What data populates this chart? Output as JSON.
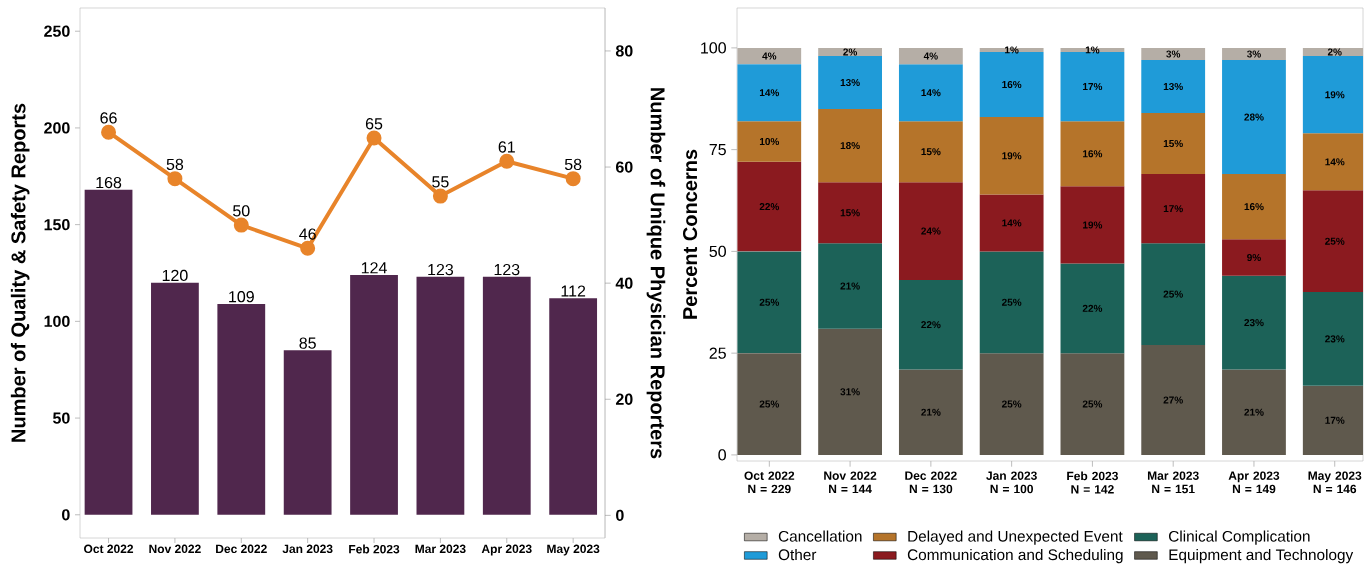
{
  "chart_data": [
    {
      "type": "bar",
      "categories": [
        "Oct 2022",
        "Nov 2022",
        "Dec 2022",
        "Jan 2023",
        "Feb 2023",
        "Mar 2023",
        "Apr 2023",
        "May 2023"
      ],
      "series": [
        {
          "type": "bar",
          "color": "#50274d",
          "values": [
            168,
            120,
            109,
            85,
            124,
            123,
            123,
            112
          ]
        },
        {
          "type": "line",
          "axis": "y2",
          "color": "#e8842a",
          "marker": "circle",
          "values": [
            66,
            58,
            50,
            46,
            65,
            55,
            61,
            58
          ]
        }
      ],
      "ylabel": "Number of Quality & Safety Reports",
      "y2label": "Number of Unique Physician Reporters",
      "ylim": [
        -12,
        262
      ],
      "yticks": [
        0,
        50,
        100,
        150,
        200,
        250
      ],
      "y2lim": [
        -3.9,
        87.4
      ],
      "y2ticks": [
        0,
        20,
        40,
        60,
        80
      ],
      "data_labels": true,
      "grid": false
    },
    {
      "type": "bar",
      "stacked": true,
      "categories": [
        "Oct 2022 N = 229",
        "Nov 2022 N = 144",
        "Dec 2022 N = 130",
        "Jan 2023 N = 100",
        "Feb 2023 N = 142",
        "Mar 2023 N = 151",
        "Apr 2023 N = 149",
        "May 2023 N = 146"
      ],
      "series": [
        {
          "name": "Equipment and Technology",
          "color": "#5f594d",
          "values": [
            25,
            31,
            21,
            25,
            25,
            27,
            21,
            17
          ],
          "value_labels": [
            "25%",
            "31%",
            "21%",
            "25%",
            "25%",
            "27%",
            "21%",
            "17%"
          ]
        },
        {
          "name": "Clinical Complication",
          "color": "#1c6258",
          "values": [
            25,
            21,
            22,
            25,
            22,
            25,
            23,
            23
          ],
          "value_labels": [
            "25%",
            "21%",
            "22%",
            "25%",
            "22%",
            "25%",
            "23%",
            "23%"
          ]
        },
        {
          "name": "Communication and Scheduling",
          "color": "#8b1a1f",
          "values": [
            22,
            15,
            24,
            14,
            19,
            17,
            9,
            25
          ],
          "value_labels": [
            "22%",
            "15%",
            "24%",
            "14%",
            "19%",
            "17%",
            "9%",
            "25%"
          ]
        },
        {
          "name": "Delayed and Unexpected Event",
          "color": "#b5742a",
          "values": [
            10,
            18,
            15,
            19,
            16,
            15,
            16,
            14
          ],
          "value_labels": [
            "10%",
            "18%",
            "15%",
            "19%",
            "16%",
            "15%",
            "16%",
            "14%"
          ]
        },
        {
          "name": "Other",
          "color": "#1f9bd8",
          "values": [
            14,
            13,
            14,
            16,
            17,
            13,
            28,
            19
          ],
          "value_labels": [
            "14%",
            "13%",
            "14%",
            "16%",
            "17%",
            "13%",
            "28%",
            "19%"
          ]
        },
        {
          "name": "Cancellation",
          "color": "#b5aea6",
          "values": [
            4,
            2,
            4,
            1,
            1,
            3,
            3,
            2
          ],
          "value_labels": [
            "4%",
            "2%",
            "4%",
            "1%",
            "1%",
            "3%",
            "3%",
            "2%"
          ]
        }
      ],
      "ylabel": "Percent Concerns",
      "ylim": [
        -1.5,
        109.8
      ],
      "yticks": [
        0,
        25,
        50,
        75,
        100
      ],
      "grid": false,
      "legend": "bottom"
    }
  ]
}
